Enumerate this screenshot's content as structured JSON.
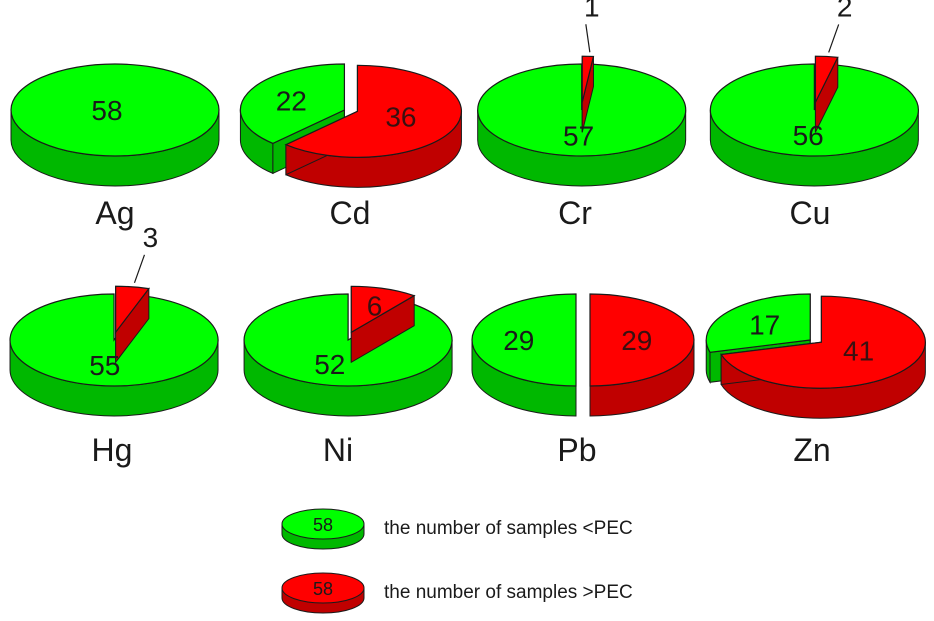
{
  "chart_data": {
    "type": "pie",
    "style": "3d-exploded",
    "total_samples": 58,
    "colors": {
      "below": "#00ff00",
      "below_side": "#00b800",
      "above": "#ff0000",
      "above_side": "#c00000",
      "outline": "#1a1a1a"
    },
    "pies": [
      {
        "element": "Ag",
        "below_pec": 58,
        "above_pec": 0
      },
      {
        "element": "Cd",
        "below_pec": 22,
        "above_pec": 36
      },
      {
        "element": "Cr",
        "below_pec": 57,
        "above_pec": 1
      },
      {
        "element": "Cu",
        "below_pec": 56,
        "above_pec": 2
      },
      {
        "element": "Hg",
        "below_pec": 55,
        "above_pec": 3
      },
      {
        "element": "Ni",
        "below_pec": 52,
        "above_pec": 6
      },
      {
        "element": "Pb",
        "below_pec": 29,
        "above_pec": 29
      },
      {
        "element": "Zn",
        "below_pec": 17,
        "above_pec": 41
      }
    ],
    "legend": [
      {
        "value": "58",
        "color": "below",
        "label": "the number of samples <PEC"
      },
      {
        "value": "58",
        "color": "above",
        "label": "the number of samples >PEC"
      }
    ]
  },
  "labels": {
    "ag": "Ag",
    "cd": "Cd",
    "cr": "Cr",
    "cu": "Cu",
    "hg": "Hg",
    "ni": "Ni",
    "pb": "Pb",
    "zn": "Zn"
  },
  "legend": {
    "below_value": "58",
    "below_text": "the number of samples <PEC",
    "above_value": "58",
    "above_text": "the number of samples >PEC"
  }
}
